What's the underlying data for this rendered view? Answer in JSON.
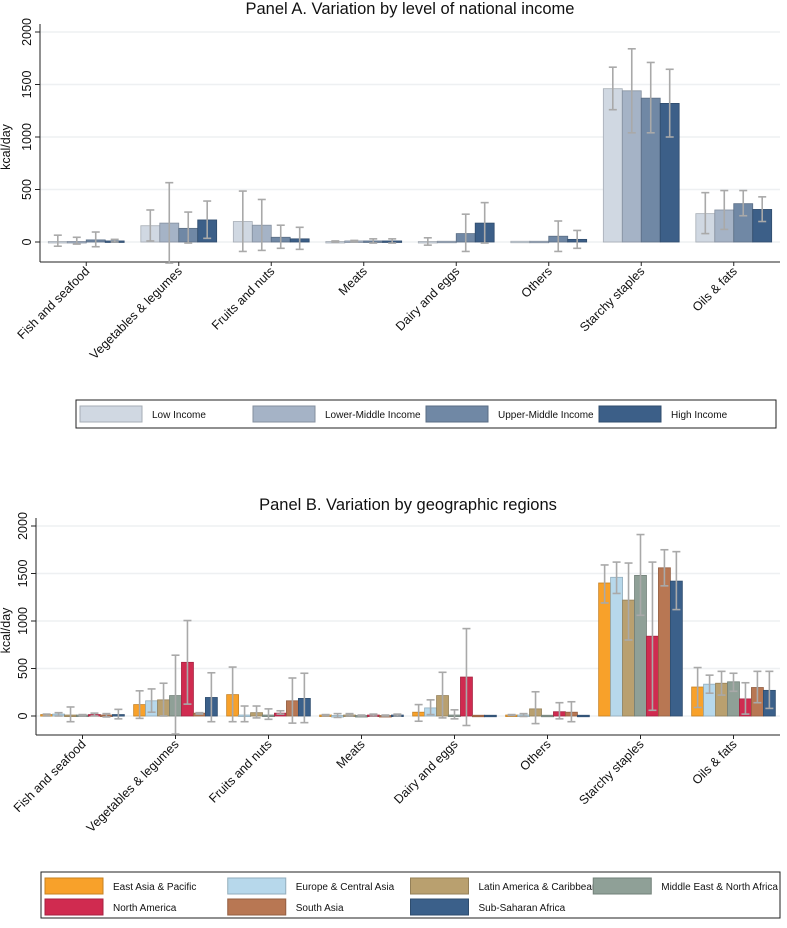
{
  "chart_data": [
    {
      "type": "bar",
      "title": "Panel A. Variation by level of national income",
      "ylabel": "kcal/day",
      "xlabel": "",
      "ylim": [
        -200,
        2000
      ],
      "yticks": [
        "0",
        "500",
        "1000",
        "1500",
        "2000"
      ],
      "grid": true,
      "legend_position": "bottom",
      "categories": [
        "Fish and seafood",
        "Vegetables & legumes",
        "Fruits and nuts",
        "Meats",
        "Dairy and eggs",
        "Others",
        "Starchy staples",
        "Oils & fats"
      ],
      "series": [
        {
          "name": "Low Income",
          "color": "#d0d8e2",
          "values": [
            5,
            155,
            195,
            5,
            5,
            0,
            1460,
            270
          ],
          "err_low": [
            -40,
            10,
            -90,
            0,
            -30,
            0,
            1260,
            80
          ],
          "err_high": [
            65,
            305,
            485,
            10,
            40,
            0,
            1665,
            470
          ]
        },
        {
          "name": "Lower-Middle Income",
          "color": "#a5b3c6",
          "values": [
            5,
            180,
            160,
            10,
            0,
            0,
            1440,
            305
          ],
          "err_low": [
            -20,
            -200,
            -80,
            0,
            0,
            0,
            1040,
            120
          ],
          "err_high": [
            45,
            565,
            405,
            15,
            0,
            0,
            1840,
            490
          ]
        },
        {
          "name": "Upper-Middle Income",
          "color": "#7088a5",
          "values": [
            20,
            130,
            45,
            10,
            80,
            55,
            1370,
            365
          ],
          "err_low": [
            -45,
            -10,
            -60,
            -10,
            -90,
            -90,
            1040,
            250
          ],
          "err_high": [
            95,
            285,
            160,
            30,
            265,
            200,
            1710,
            490
          ]
        },
        {
          "name": "High Income",
          "color": "#3c5f88",
          "values": [
            10,
            210,
            30,
            10,
            180,
            25,
            1320,
            310
          ],
          "err_low": [
            0,
            35,
            -70,
            -10,
            -10,
            -60,
            1000,
            195
          ],
          "err_high": [
            25,
            390,
            140,
            30,
            375,
            110,
            1645,
            430
          ]
        }
      ]
    },
    {
      "type": "bar",
      "title": "Panel B. Variation by geographic regions",
      "ylabel": "kcal/day",
      "xlabel": "",
      "ylim": [
        -200,
        2000
      ],
      "yticks": [
        "0",
        "500",
        "1000",
        "1500",
        "2000"
      ],
      "grid": true,
      "legend_position": "bottom",
      "categories": [
        "Fish and seafood",
        "Vegetables & legumes",
        "Fruits and nuts",
        "Meats",
        "Dairy and eggs",
        "Others",
        "Starchy staples",
        "Oils & fats"
      ],
      "series": [
        {
          "name": "East Asia & Pacific",
          "color": "#f8a12a",
          "values": [
            15,
            120,
            225,
            10,
            40,
            10,
            1400,
            305
          ],
          "err_low": [
            0,
            -25,
            -60,
            0,
            -55,
            5,
            1190,
            90
          ],
          "err_high": [
            20,
            265,
            515,
            15,
            120,
            15,
            1590,
            510
          ]
        },
        {
          "name": "Europe & Central Asia",
          "color": "#b7d8eb",
          "values": [
            20,
            160,
            10,
            5,
            85,
            10,
            1460,
            335
          ],
          "err_low": [
            0,
            40,
            -60,
            -15,
            15,
            -5,
            1290,
            240
          ],
          "err_high": [
            35,
            285,
            105,
            25,
            170,
            25,
            1620,
            430
          ]
        },
        {
          "name": "Latin America & Caribbean",
          "color": "#b9a06f",
          "values": [
            10,
            170,
            35,
            10,
            215,
            75,
            1220,
            345
          ],
          "err_low": [
            -60,
            0,
            -20,
            0,
            -20,
            -80,
            800,
            220
          ],
          "err_high": [
            95,
            345,
            105,
            25,
            460,
            255,
            1610,
            470
          ]
        },
        {
          "name": "Middle East & North Africa",
          "color": "#8fa097",
          "values": [
            10,
            215,
            10,
            5,
            10,
            0,
            1480,
            360
          ],
          "err_low": [
            0,
            -190,
            -35,
            0,
            -30,
            0,
            1060,
            260
          ],
          "err_high": [
            15,
            640,
            75,
            10,
            65,
            0,
            1910,
            450
          ]
        },
        {
          "name": "North America",
          "color": "#d02b50",
          "values": [
            15,
            565,
            30,
            10,
            410,
            45,
            840,
            180
          ],
          "err_low": [
            0,
            125,
            20,
            0,
            -100,
            -30,
            60,
            20
          ],
          "err_high": [
            30,
            1005,
            55,
            20,
            920,
            140,
            1620,
            350
          ]
        },
        {
          "name": "South Asia",
          "color": "#b87753",
          "values": [
            10,
            30,
            160,
            5,
            0,
            40,
            1560,
            300
          ],
          "err_low": [
            -10,
            20,
            -75,
            0,
            0,
            -60,
            1370,
            140
          ],
          "err_high": [
            25,
            35,
            400,
            10,
            0,
            150,
            1750,
            470
          ]
        },
        {
          "name": "Sub-Saharan Africa",
          "color": "#3b608a",
          "values": [
            15,
            195,
            185,
            10,
            0,
            0,
            1420,
            270
          ],
          "err_low": [
            -30,
            -60,
            -70,
            0,
            0,
            0,
            1120,
            80
          ],
          "err_high": [
            70,
            455,
            450,
            20,
            0,
            0,
            1730,
            470
          ]
        }
      ]
    }
  ]
}
